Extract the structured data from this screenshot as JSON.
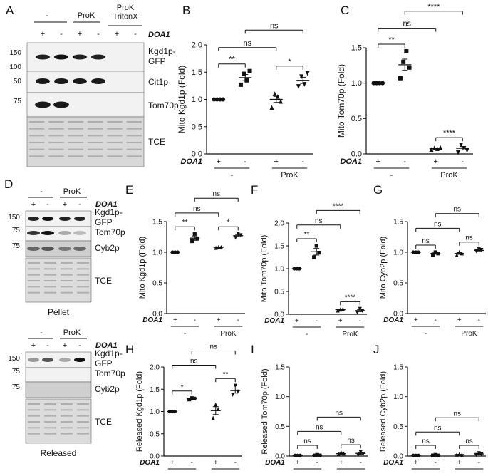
{
  "panel_letters": {
    "A": "A",
    "B": "B",
    "C": "C",
    "D": "D",
    "E": "E",
    "F": "F",
    "G": "G",
    "H": "H",
    "I": "I",
    "J": "J"
  },
  "blot_A": {
    "group_labels": [
      "-",
      "ProK",
      "ProK\nTritonX"
    ],
    "doa1_label": "DOA1",
    "lane_signs": [
      "+",
      "-",
      "+",
      "-",
      "+",
      "-"
    ],
    "mw_markers": [
      "150",
      "100",
      "50",
      "75"
    ],
    "row_labels": [
      "Kgd1p-\nGFP",
      "Cit1p",
      "Tom70p",
      "TCE"
    ]
  },
  "blot_D_pellet": {
    "group_labels": [
      "-",
      "ProK"
    ],
    "doa1_label": "DOA1",
    "lane_signs": [
      "+",
      "-",
      "+",
      "-"
    ],
    "mw_markers": [
      "150",
      "75",
      "75"
    ],
    "row_labels": [
      "Kgd1p-\nGFP",
      "Tom70p",
      "Cyb2p",
      "TCE"
    ],
    "caption": "Pellet"
  },
  "blot_D_released": {
    "group_labels": [
      "-",
      "ProK"
    ],
    "doa1_label": "DOA1",
    "lane_signs": [
      "+",
      "-",
      "+",
      "-"
    ],
    "mw_markers": [
      "150",
      "75",
      "75"
    ],
    "row_labels": [
      "Kgd1p-\nGFP",
      "Tom70p",
      "Cyb2p",
      "TCE"
    ],
    "caption": "Released"
  },
  "x_labels": {
    "doa1": "DOA1",
    "signs": [
      "+",
      "-",
      "+",
      "-"
    ],
    "groups": [
      "-",
      "ProK"
    ]
  },
  "colors": {
    "ink": "#111111",
    "blot_bg": "#d8d8d8",
    "band": "#1a1a1a"
  },
  "chart_data": [
    {
      "id": "B",
      "type": "scatter",
      "ylabel": "Mito Kgd1p (Fold)",
      "ylim": [
        0,
        2.0
      ],
      "yticks": [
        "0.0",
        "0.5",
        "1.0",
        "1.5",
        "2.0"
      ],
      "groups": [
        {
          "points": [
            1.0,
            1.0,
            1.0,
            1.0
          ],
          "mean": 1.0
        },
        {
          "points": [
            1.27,
            1.47,
            1.35,
            1.52
          ],
          "mean": 1.4
        },
        {
          "points": [
            0.85,
            1.1,
            1.05,
            0.96
          ],
          "mean": 1.0
        },
        {
          "points": [
            1.24,
            1.42,
            1.28,
            1.48
          ],
          "mean": 1.35
        }
      ],
      "sig": [
        [
          "**"
        ],
        [
          "*"
        ],
        [
          "ns"
        ],
        [
          "ns"
        ]
      ]
    },
    {
      "id": "C",
      "type": "scatter",
      "ylabel": "Mito Tom70p (Fold)",
      "ylim": [
        0,
        1.5
      ],
      "yticks": [
        "0.0",
        "0.5",
        "1.0",
        "1.5"
      ],
      "groups": [
        {
          "points": [
            1.0,
            1.0,
            1.0,
            1.0
          ],
          "mean": 1.0
        },
        {
          "points": [
            1.07,
            1.3,
            1.45,
            1.22
          ],
          "mean": 1.26
        },
        {
          "points": [
            0.06,
            0.08,
            0.07,
            0.09
          ],
          "mean": 0.075
        },
        {
          "points": [
            0.02,
            0.13,
            0.08,
            0.05
          ],
          "mean": 0.08
        }
      ],
      "sig": [
        [
          "**"
        ],
        [
          "****"
        ],
        [
          "ns"
        ],
        [
          "****"
        ]
      ]
    },
    {
      "id": "E",
      "type": "scatter",
      "ylabel": "Mito Kgd1p (Fold)",
      "ylim": [
        0,
        1.5
      ],
      "yticks": [
        "0.0",
        "0.5",
        "1.0",
        "1.5"
      ],
      "groups": [
        {
          "points": [
            1.0,
            1.0,
            1.0
          ],
          "mean": 1.0
        },
        {
          "points": [
            1.18,
            1.3,
            1.22
          ],
          "mean": 1.23
        },
        {
          "points": [
            1.07,
            1.08,
            1.08
          ],
          "mean": 1.08
        },
        {
          "points": [
            1.24,
            1.3,
            1.28
          ],
          "mean": 1.27
        }
      ],
      "sig": [
        [
          "**"
        ],
        [
          "*"
        ],
        [
          "ns"
        ],
        [
          "ns"
        ]
      ]
    },
    {
      "id": "F",
      "type": "scatter",
      "ylabel": "Mito Tom70p (Fold)",
      "ylim": [
        0,
        2.0
      ],
      "yticks": [
        "0.0",
        "0.5",
        "1.0",
        "1.5",
        "2.0"
      ],
      "groups": [
        {
          "points": [
            1.0,
            1.0,
            1.0
          ],
          "mean": 1.0
        },
        {
          "points": [
            1.25,
            1.5,
            1.35
          ],
          "mean": 1.37
        },
        {
          "points": [
            0.08,
            0.1,
            0.11
          ],
          "mean": 0.1
        },
        {
          "points": [
            0.04,
            0.12,
            0.08
          ],
          "mean": 0.08
        }
      ],
      "sig": [
        [
          "**"
        ],
        [
          "****"
        ],
        [
          "ns"
        ],
        [
          "****"
        ]
      ]
    },
    {
      "id": "G",
      "type": "scatter",
      "ylabel": "Mito Cyb2p (Fold)",
      "ylim": [
        0,
        1.5
      ],
      "yticks": [
        "0.0",
        "0.5",
        "1.0",
        "1.5"
      ],
      "groups": [
        {
          "points": [
            1.0,
            1.0,
            1.0
          ],
          "mean": 1.0
        },
        {
          "points": [
            0.96,
            1.0,
            0.98
          ],
          "mean": 0.98
        },
        {
          "points": [
            0.95,
            1.0,
            0.98
          ],
          "mean": 0.98
        },
        {
          "points": [
            1.02,
            1.05,
            1.04
          ],
          "mean": 1.03
        }
      ],
      "sig": [
        [
          "ns"
        ],
        [
          "ns"
        ],
        [
          "ns"
        ],
        [
          "ns"
        ]
      ]
    },
    {
      "id": "H",
      "type": "scatter",
      "ylabel": "Released Kgd1p (Fold)",
      "ylim": [
        0,
        2.0
      ],
      "yticks": [
        "0.0",
        "0.5",
        "1.0",
        "1.5",
        "2.0"
      ],
      "groups": [
        {
          "points": [
            1.0,
            1.0,
            1.0
          ],
          "mean": 1.0
        },
        {
          "points": [
            1.27,
            1.3,
            1.29
          ],
          "mean": 1.29
        },
        {
          "points": [
            0.85,
            1.15,
            1.05
          ],
          "mean": 1.02
        },
        {
          "points": [
            1.38,
            1.58,
            1.45
          ],
          "mean": 1.47
        }
      ],
      "sig": [
        [
          "*"
        ],
        [
          "**"
        ],
        [
          "ns"
        ],
        [
          "ns"
        ]
      ]
    },
    {
      "id": "I",
      "type": "scatter",
      "ylabel": "Released Tom70p (Fold)",
      "ylim": [
        0,
        1.5
      ],
      "yticks": [
        "0.0",
        "0.5",
        "1.0",
        "1.5"
      ],
      "groups": [
        {
          "points": [
            0.01,
            0.01,
            0.01
          ],
          "mean": 0.01
        },
        {
          "points": [
            0.01,
            0.02,
            0.01
          ],
          "mean": 0.015
        },
        {
          "points": [
            0.03,
            0.06,
            0.04
          ],
          "mean": 0.04
        },
        {
          "points": [
            0.02,
            0.07,
            0.04
          ],
          "mean": 0.045
        }
      ],
      "sig": [
        [
          "ns"
        ],
        [
          "ns"
        ],
        [
          "ns"
        ],
        [
          "ns"
        ]
      ]
    },
    {
      "id": "J",
      "type": "scatter",
      "ylabel": "Released Cyb2p (Fold)",
      "ylim": [
        0,
        1.5
      ],
      "yticks": [
        "0.0",
        "0.5",
        "1.0",
        "1.5"
      ],
      "groups": [
        {
          "points": [
            0.01,
            0.01,
            0.01
          ],
          "mean": 0.01
        },
        {
          "points": [
            0.01,
            0.02,
            0.01
          ],
          "mean": 0.015
        },
        {
          "points": [
            0.02,
            0.03,
            0.02
          ],
          "mean": 0.025
        },
        {
          "points": [
            0.02,
            0.05,
            0.03
          ],
          "mean": 0.035
        }
      ],
      "sig": [
        [
          "ns"
        ],
        [
          "ns"
        ],
        [
          "ns"
        ],
        [
          "ns"
        ]
      ]
    }
  ]
}
